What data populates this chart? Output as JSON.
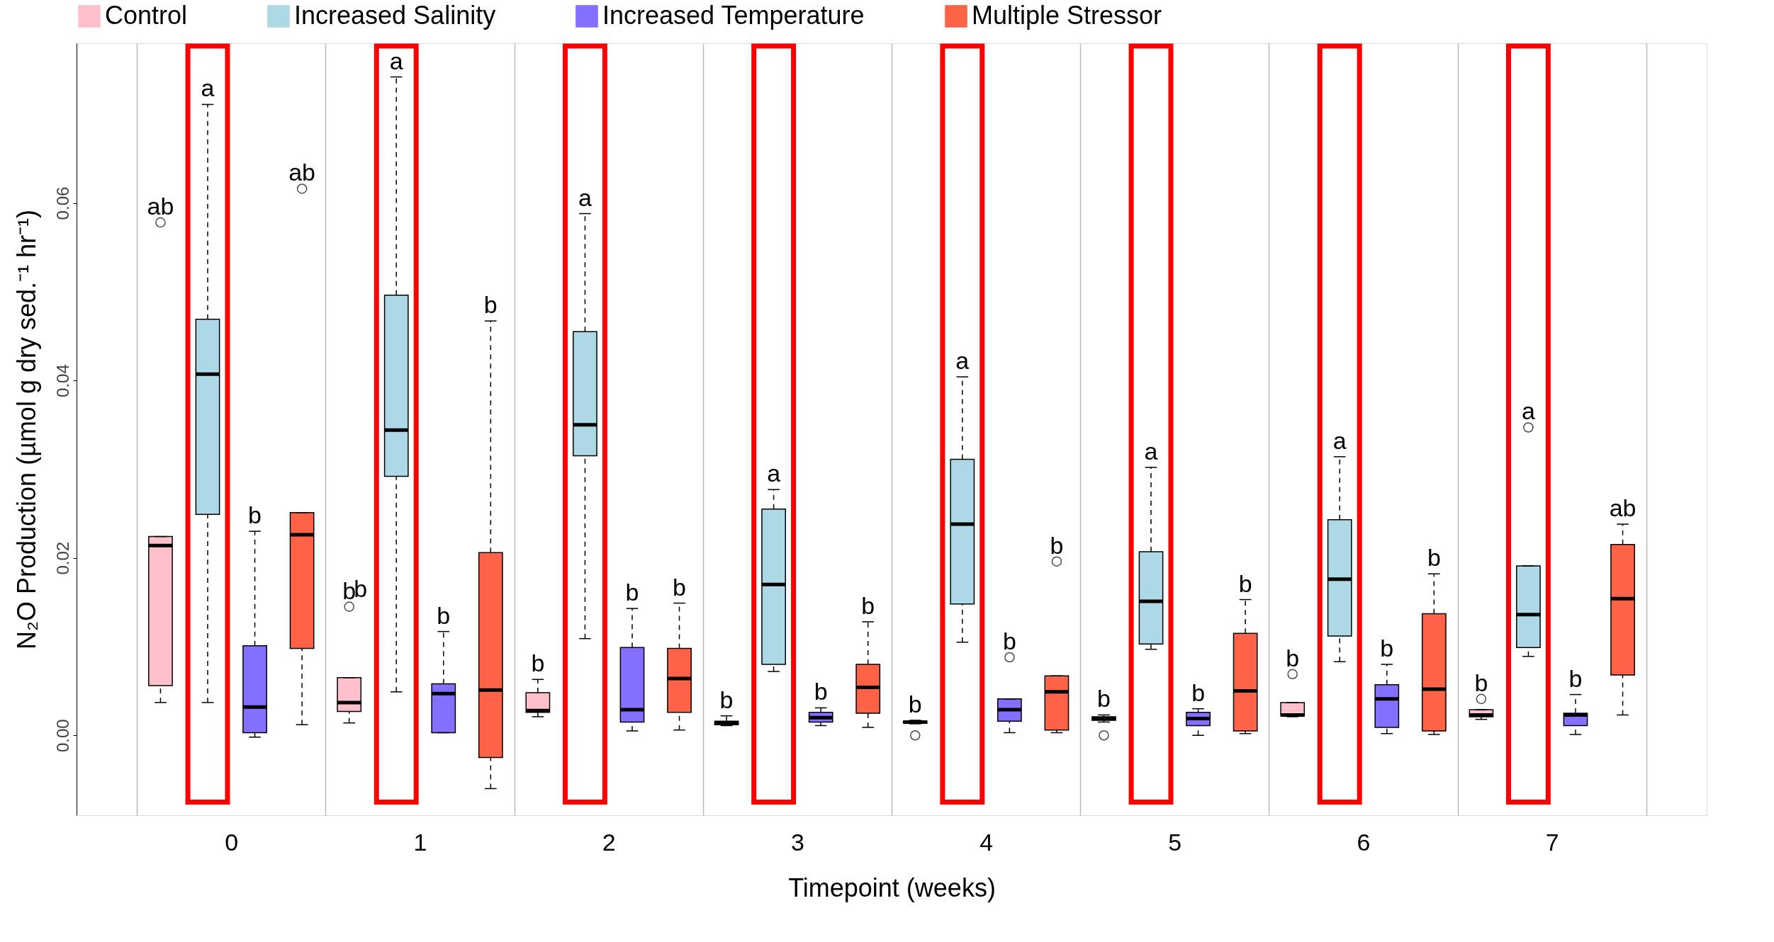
{
  "chart_data": {
    "type": "box",
    "xlabel": "Timepoint (weeks)",
    "ylabel": "N₂O Production (µmol g dry sed.⁻¹ hr⁻¹)",
    "categories": [
      "0",
      "1",
      "2",
      "3",
      "4",
      "5",
      "6",
      "7"
    ],
    "ylim": [
      -0.009,
      0.078
    ],
    "yticks": [
      {
        "value": 0,
        "label": "0.00"
      },
      {
        "value": 0.02,
        "label": "0.02"
      },
      {
        "value": 0.04,
        "label": "0.04"
      },
      {
        "value": 0.06,
        "label": "0.06"
      }
    ],
    "grid": "x",
    "legend": "top",
    "annotations": [
      "b"
    ],
    "series": [
      {
        "name": "Control",
        "color": "#ffc0cb",
        "value_labels": [
          "ab",
          "b",
          "b",
          "b",
          "b",
          "b",
          "b",
          "b"
        ],
        "boxes": [
          {
            "low": 0.0037,
            "q1": 0.0056,
            "median": 0.0214,
            "q3": 0.0224,
            "high": 0.0224,
            "outliers": [
              0.0578
            ]
          },
          {
            "low": 0.0014,
            "q1": 0.0027,
            "median": 0.0037,
            "q3": 0.0065,
            "high": 0.0065,
            "outliers": [
              0.0145
            ]
          },
          {
            "low": 0.0021,
            "q1": 0.0026,
            "median": 0.0028,
            "q3": 0.0048,
            "high": 0.0063
          },
          {
            "low": 0.0011,
            "q1": 0.0012,
            "median": 0.0014,
            "q3": 0.0016,
            "high": 0.0022
          },
          {
            "low": 0.0013,
            "q1": 0.0014,
            "median": 0.0015,
            "q3": 0.0016,
            "high": 0.0017,
            "outliers": [
              0.0
            ]
          },
          {
            "low": 0.0015,
            "q1": 0.0017,
            "median": 0.0019,
            "q3": 0.0021,
            "high": 0.0023,
            "outliers": [
              0.0
            ]
          },
          {
            "low": 0.0021,
            "q1": 0.0022,
            "median": 0.0023,
            "q3": 0.0037,
            "high": 0.0037,
            "outliers": [
              0.0069
            ]
          },
          {
            "low": 0.0018,
            "q1": 0.0021,
            "median": 0.0023,
            "q3": 0.0029,
            "high": 0.0029,
            "outliers": [
              0.0041
            ]
          }
        ]
      },
      {
        "name": "Increased Salinity",
        "color": "#add8e6",
        "value_labels": [
          "a",
          "a",
          "a",
          "a",
          "a",
          "a",
          "a",
          "a"
        ],
        "boxes": [
          {
            "low": 0.0037,
            "q1": 0.0249,
            "median": 0.0407,
            "q3": 0.0469,
            "high": 0.0711
          },
          {
            "low": 0.0049,
            "q1": 0.0292,
            "median": 0.0344,
            "q3": 0.0496,
            "high": 0.0742
          },
          {
            "low": 0.0109,
            "q1": 0.0315,
            "median": 0.035,
            "q3": 0.0455,
            "high": 0.0588
          },
          {
            "low": 0.0072,
            "q1": 0.008,
            "median": 0.017,
            "q3": 0.0255,
            "high": 0.0277
          },
          {
            "low": 0.0105,
            "q1": 0.0148,
            "median": 0.0238,
            "q3": 0.0311,
            "high": 0.0404
          },
          {
            "low": 0.0097,
            "q1": 0.0103,
            "median": 0.0151,
            "q3": 0.0207,
            "high": 0.0302
          },
          {
            "low": 0.0083,
            "q1": 0.0112,
            "median": 0.0176,
            "q3": 0.0243,
            "high": 0.0314
          },
          {
            "low": 0.0089,
            "q1": 0.0099,
            "median": 0.0136,
            "q3": 0.0191,
            "high": 0.0191,
            "outliers": [
              0.0347
            ]
          }
        ]
      },
      {
        "name": "Increased Temperature",
        "color": "#8470ff",
        "value_labels": [
          "b",
          "b",
          "b",
          "b",
          "b",
          "b",
          "b",
          "b"
        ],
        "boxes": [
          {
            "low": -0.0002,
            "q1": 0.0003,
            "median": 0.0032,
            "q3": 0.0101,
            "high": 0.023
          },
          {
            "low": 0.0003,
            "q1": 0.0003,
            "median": 0.0047,
            "q3": 0.0058,
            "high": 0.0117
          },
          {
            "low": 0.0005,
            "q1": 0.0015,
            "median": 0.0029,
            "q3": 0.0099,
            "high": 0.0143
          },
          {
            "low": 0.0011,
            "q1": 0.0015,
            "median": 0.002,
            "q3": 0.0026,
            "high": 0.0031
          },
          {
            "low": 0.0003,
            "q1": 0.0016,
            "median": 0.0029,
            "q3": 0.0041,
            "high": 0.0041,
            "outliers": [
              0.0088
            ]
          },
          {
            "low": 0.0,
            "q1": 0.0011,
            "median": 0.0019,
            "q3": 0.0026,
            "high": 0.003
          },
          {
            "low": 0.0002,
            "q1": 0.0009,
            "median": 0.0041,
            "q3": 0.0057,
            "high": 0.008
          },
          {
            "low": 0.0001,
            "q1": 0.0011,
            "median": 0.0023,
            "q3": 0.0025,
            "high": 0.0046
          }
        ]
      },
      {
        "name": "Multiple Stressor",
        "color": "#ff6347",
        "value_labels": [
          "ab",
          "b",
          "b",
          "b",
          "b",
          "b",
          "b",
          "ab"
        ],
        "boxes": [
          {
            "low": 0.0012,
            "q1": 0.0098,
            "median": 0.0226,
            "q3": 0.0251,
            "high": 0.0251,
            "outliers": [
              0.0616
            ]
          },
          {
            "low": -0.006,
            "q1": -0.0025,
            "median": 0.0051,
            "q3": 0.0206,
            "high": 0.0467
          },
          {
            "low": 0.0006,
            "q1": 0.0026,
            "median": 0.0064,
            "q3": 0.0098,
            "high": 0.0149
          },
          {
            "low": 0.0009,
            "q1": 0.0025,
            "median": 0.0054,
            "q3": 0.008,
            "high": 0.0128
          },
          {
            "low": 0.0003,
            "q1": 0.0006,
            "median": 0.0049,
            "q3": 0.0067,
            "high": 0.0067,
            "outliers": [
              0.0196
            ]
          },
          {
            "low": 0.0002,
            "q1": 0.0005,
            "median": 0.005,
            "q3": 0.0115,
            "high": 0.0153
          },
          {
            "low": 0.0001,
            "q1": 0.0005,
            "median": 0.0052,
            "q3": 0.0137,
            "high": 0.0182
          },
          {
            "low": 0.0023,
            "q1": 0.0068,
            "median": 0.0154,
            "q3": 0.0215,
            "high": 0.0238
          }
        ]
      }
    ]
  }
}
